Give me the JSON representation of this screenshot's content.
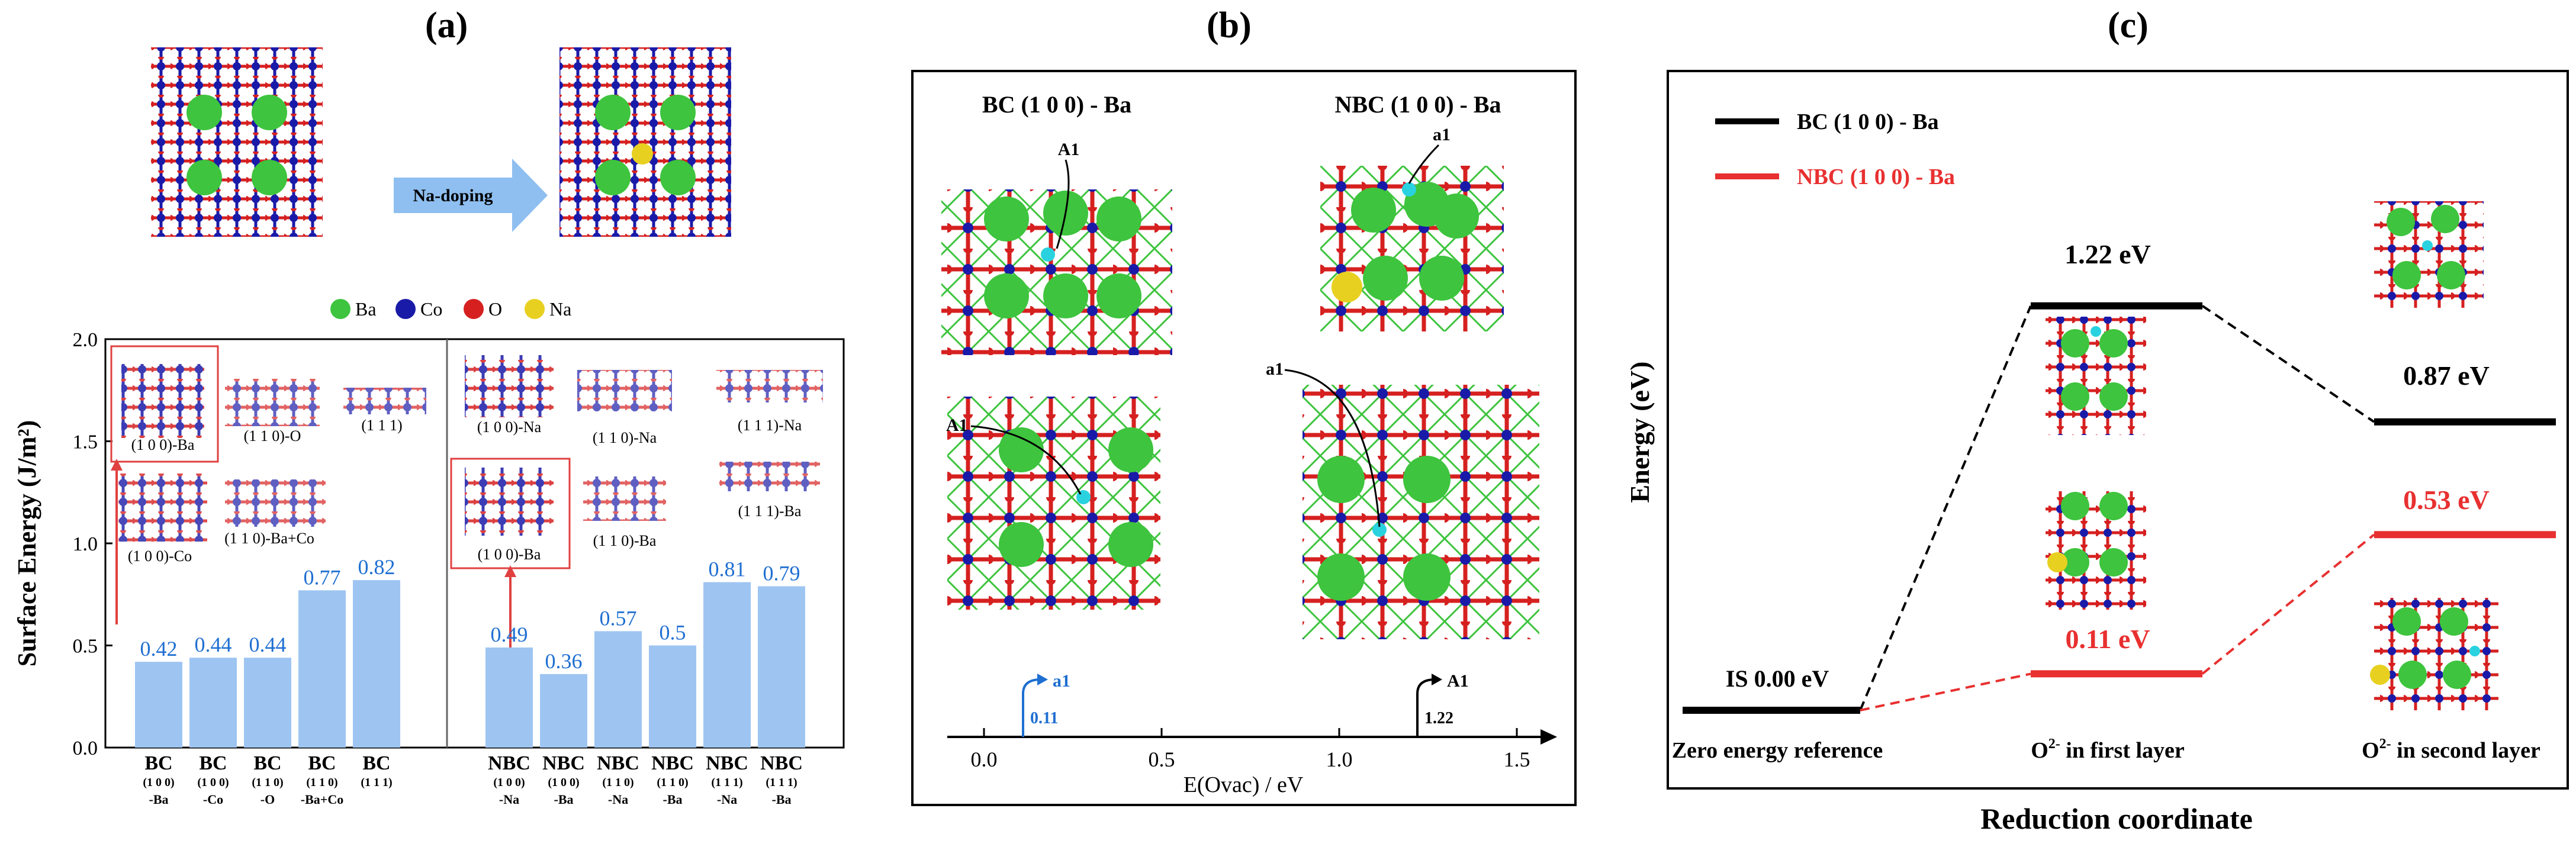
{
  "panel_labels": [
    "(a)",
    "(b)",
    "(c)"
  ],
  "panel_a": {
    "doping_label": "Na-doping",
    "legend": [
      {
        "label": "Ba",
        "color": "#3ec43e"
      },
      {
        "label": "Co",
        "color": "#1a1aa8"
      },
      {
        "label": "O",
        "color": "#d62020"
      },
      {
        "label": "Na",
        "color": "#e8d020"
      }
    ],
    "inset_labels_bc": [
      "(1 0 0)-Ba",
      "(1 1 0)-O",
      "(1 1 1)",
      "(1 0 0)-Co",
      "(1 1 0)-Ba+Co"
    ],
    "inset_labels_nbc": [
      "(1 0 0)-Na",
      "(1 1 0)-Na",
      "(1 1 1)-Na",
      "(1 0 0)-Ba",
      "(1 1 0)-Ba",
      "(1 1 1)-Ba"
    ]
  },
  "panel_b": {
    "struct_titles": [
      "BC (1 0 0) - Ba",
      "NBC (1 0 0) - Ba"
    ],
    "site_labels": {
      "bc_top": "A1",
      "nbc_top": "a1",
      "bc_bottom": "A1",
      "nbc_bottom": "a1"
    },
    "axis": {
      "xlabel": "E(O<sub>vac</sub>) / eV",
      "xlabel_text": "E(Ovac) / eV",
      "ticks": [
        "0.0",
        "0.5",
        "1.0",
        "1.5"
      ]
    },
    "markers": [
      {
        "label": "a1",
        "value": 0.11,
        "value_text": "0.11",
        "color": "#1f6fd1"
      },
      {
        "label": "A1",
        "value": 1.22,
        "value_text": "1.22",
        "color": "#000000"
      }
    ]
  },
  "panel_c": {
    "legend": [
      {
        "label": "BC (1 0 0) - Ba",
        "color": "#000000"
      },
      {
        "label": "NBC (1 0 0) - Ba",
        "color": "#e83030"
      }
    ],
    "ylabel": "Energy (eV)",
    "xlabel": "Reduction coordinate",
    "level_labels": {
      "is": "IS 0.00 eV",
      "bc_first": "1.22 eV",
      "bc_second": "0.87 eV",
      "nbc_first": "0.11 eV",
      "nbc_second": "0.53 eV"
    },
    "states": [
      "Zero energy reference",
      "O2- in first layer",
      "O2- in second layer"
    ]
  },
  "chart_data": [
    {
      "type": "bar",
      "title": "(a)",
      "ylabel": "Surface Energy (J/m2)",
      "ylabel_text": "Surface Energy (J/m²)",
      "ylim": [
        0,
        2.0
      ],
      "yticks": [
        "0.0",
        "0.5",
        "1.0",
        "1.5",
        "2.0"
      ],
      "bar_color": "#9ec5f2",
      "label_color": "#1f6fd1",
      "categories": [
        {
          "main": "BC",
          "sub1": "(1 0 0)",
          "sub2": "-Ba"
        },
        {
          "main": "BC",
          "sub1": "(1 0 0)",
          "sub2": "-Co"
        },
        {
          "main": "BC",
          "sub1": "(1 1 0)",
          "sub2": "-O"
        },
        {
          "main": "BC",
          "sub1": "(1 1 0)",
          "sub2": "-Ba+Co"
        },
        {
          "main": "BC",
          "sub1": "(1 1 1)",
          "sub2": ""
        },
        {
          "main": "NBC",
          "sub1": "(1 0 0)",
          "sub2": "-Na"
        },
        {
          "main": "NBC",
          "sub1": "(1 0 0)",
          "sub2": "-Ba"
        },
        {
          "main": "NBC",
          "sub1": "(1 1 0)",
          "sub2": "-Na"
        },
        {
          "main": "NBC",
          "sub1": "(1 1 0)",
          "sub2": "-Ba"
        },
        {
          "main": "NBC",
          "sub1": "(1 1 1)",
          "sub2": "-Na"
        },
        {
          "main": "NBC",
          "sub1": "(1 1 1)",
          "sub2": "-Ba"
        }
      ],
      "values": [
        0.42,
        0.44,
        0.44,
        0.77,
        0.82,
        0.49,
        0.36,
        0.57,
        0.5,
        0.81,
        0.79
      ],
      "value_labels": [
        "0.42",
        "0.44",
        "0.44",
        "0.77",
        "0.82",
        "0.49",
        "0.36",
        "0.57",
        "0.5",
        "0.81",
        "0.79"
      ]
    },
    {
      "type": "line",
      "title": "(c)",
      "ylabel": "Energy (eV)",
      "xlabel": "Reduction coordinate",
      "categories": [
        "Zero energy reference",
        "O2- in first layer",
        "O2- in second layer"
      ],
      "series": [
        {
          "name": "BC (1 0 0) - Ba",
          "color": "#000000",
          "values": [
            0.0,
            1.22,
            0.87
          ]
        },
        {
          "name": "NBC (1 0 0) - Ba",
          "color": "#e83030",
          "values": [
            0.0,
            0.11,
            0.53
          ]
        }
      ]
    }
  ]
}
